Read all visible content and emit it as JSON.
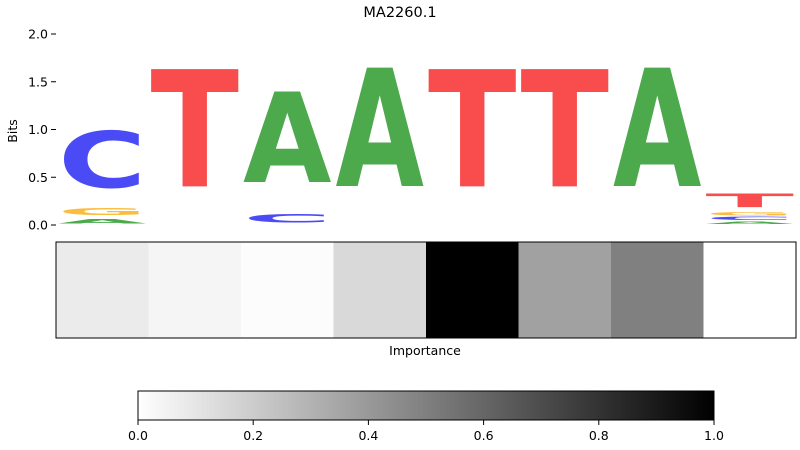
{
  "chart_data": [
    {
      "type": "sequence-logo",
      "title": "MA2260.1",
      "ylabel": "Bits",
      "ylim": [
        0,
        2.0
      ],
      "yticks": [
        "0.0",
        "0.5",
        "1.0",
        "1.5",
        "2.0"
      ],
      "letter_colors": {
        "A": "#4caa4c",
        "C": "#4b4bf5",
        "G": "#fbbd3e",
        "T": "#f94d4d"
      },
      "positions": [
        [
          {
            "letter": "A",
            "bits": 0.08
          },
          {
            "letter": "G",
            "bits": 0.12
          },
          {
            "letter": "C",
            "bits": 0.95
          }
        ],
        [
          {
            "letter": "T",
            "bits": 1.97
          }
        ],
        [
          {
            "letter": "C",
            "bits": 0.14
          },
          {
            "letter": "A",
            "bits": 1.52
          }
        ],
        [
          {
            "letter": "A",
            "bits": 1.99
          }
        ],
        [
          {
            "letter": "T",
            "bits": 1.97
          }
        ],
        [
          {
            "letter": "T",
            "bits": 1.97
          }
        ],
        [
          {
            "letter": "A",
            "bits": 1.99
          }
        ],
        [
          {
            "letter": "A",
            "bits": 0.04
          },
          {
            "letter": "C",
            "bits": 0.05
          },
          {
            "letter": "G",
            "bits": 0.05
          },
          {
            "letter": "T",
            "bits": 0.23
          }
        ]
      ]
    },
    {
      "type": "heatmap",
      "xlabel": "Importance",
      "values": [
        0.08,
        0.04,
        0.01,
        0.15,
        1.0,
        0.37,
        0.5,
        0.0
      ],
      "colormap": {
        "low": "#ffffff",
        "high": "#000000"
      },
      "colorbar": {
        "range": [
          0.0,
          1.0
        ],
        "ticks": [
          "0.0",
          "0.2",
          "0.4",
          "0.6",
          "0.8",
          "1.0"
        ]
      }
    }
  ]
}
